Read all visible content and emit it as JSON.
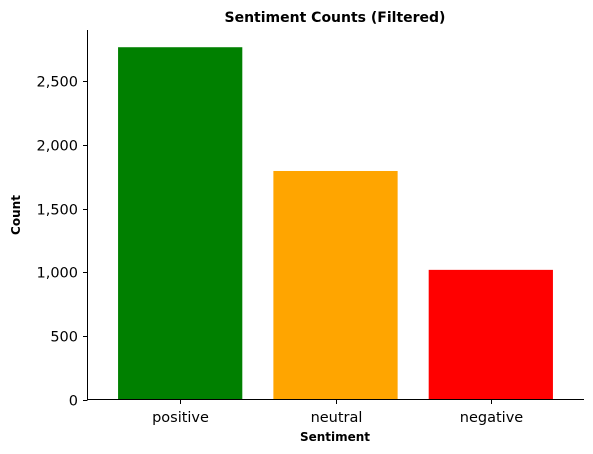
{
  "chart_data": {
    "type": "bar",
    "title": "Sentiment Counts (Filtered)",
    "xlabel": "Sentiment",
    "ylabel": "Count",
    "categories": [
      "positive",
      "neutral",
      "negative"
    ],
    "values": [
      2765,
      1795,
      1020
    ],
    "colors": [
      "#008000",
      "#ffa500",
      "#ff0000"
    ],
    "ylim": [
      0,
      2900
    ],
    "yticks": [
      0,
      500,
      1000,
      1500,
      2000,
      2500
    ],
    "ytick_labels": [
      "0",
      "500",
      "1,000",
      "1,500",
      "2,000",
      "2,500"
    ],
    "grid": false,
    "legend": "none"
  }
}
